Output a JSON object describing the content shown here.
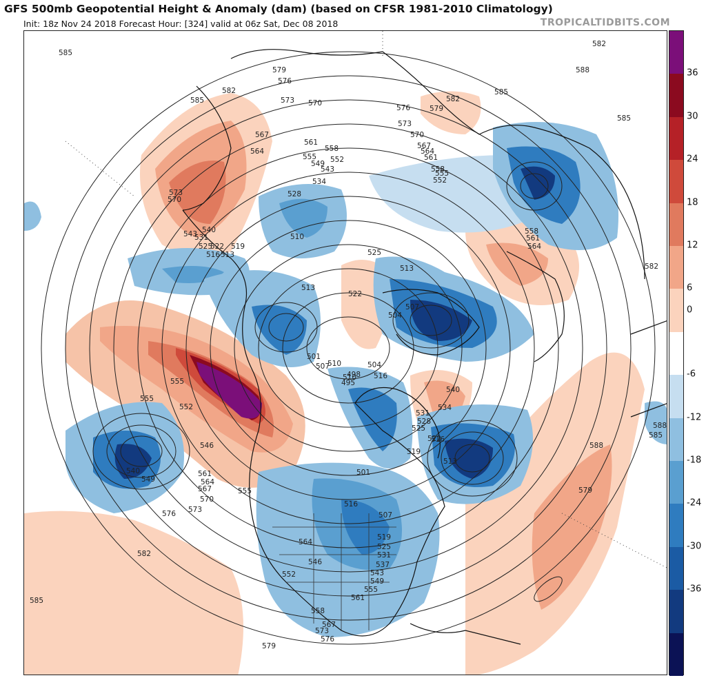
{
  "header": {
    "title": "GFS 500mb Geopotential Height & Anomaly (dam) (based on CFSR 1981-2010 Climatology)",
    "subtitle": "Init: 18z Nov 24 2018   Forecast Hour: [324]   valid at 06z Sat, Dec 08 2018",
    "credit": "TROPICALTIDBITS.COM"
  },
  "colorbar": {
    "ticks": [
      "36",
      "30",
      "24",
      "18",
      "12",
      "6",
      "0",
      "-6",
      "-12",
      "-18",
      "-24",
      "-30",
      "-36"
    ],
    "colors": [
      "#0b1255",
      "#123a7f",
      "#1b5ba4",
      "#2f7cbf",
      "#5a9fd0",
      "#8fbfe0",
      "#c6def0",
      "#ffffff",
      "#fbd3bd",
      "#f1a688",
      "#e07a5e",
      "#cf4a3b",
      "#b52127",
      "#8b0a1f",
      "#7b0f79"
    ]
  },
  "contour_labels": [
    "585",
    "579",
    "576",
    "573",
    "570",
    "582",
    "585",
    "567",
    "564",
    "561",
    "558",
    "555",
    "549",
    "552",
    "543",
    "534",
    "528",
    "510",
    "573",
    "570",
    "540",
    "543",
    "531",
    "525",
    "522",
    "519",
    "516",
    "513",
    "576",
    "579",
    "582",
    "588",
    "585",
    "573",
    "570",
    "567",
    "564",
    "561",
    "558",
    "555",
    "552",
    "558",
    "561",
    "564",
    "582",
    "585",
    "525",
    "522",
    "513",
    "513",
    "507",
    "504",
    "510",
    "501",
    "507",
    "504",
    "510",
    "516",
    "498",
    "495",
    "540",
    "534",
    "531",
    "528",
    "525",
    "522",
    "516",
    "513",
    "519",
    "555",
    "552",
    "546",
    "540",
    "549",
    "555",
    "561",
    "564",
    "567",
    "570",
    "573",
    "576",
    "555",
    "516",
    "507",
    "501",
    "519",
    "525",
    "531",
    "537",
    "543",
    "549",
    "555",
    "561",
    "564",
    "546",
    "552",
    "558",
    "567",
    "573",
    "576",
    "579",
    "582",
    "585",
    "588",
    "588",
    "585",
    "576",
    "579",
    "582",
    "588",
    "585"
  ]
}
